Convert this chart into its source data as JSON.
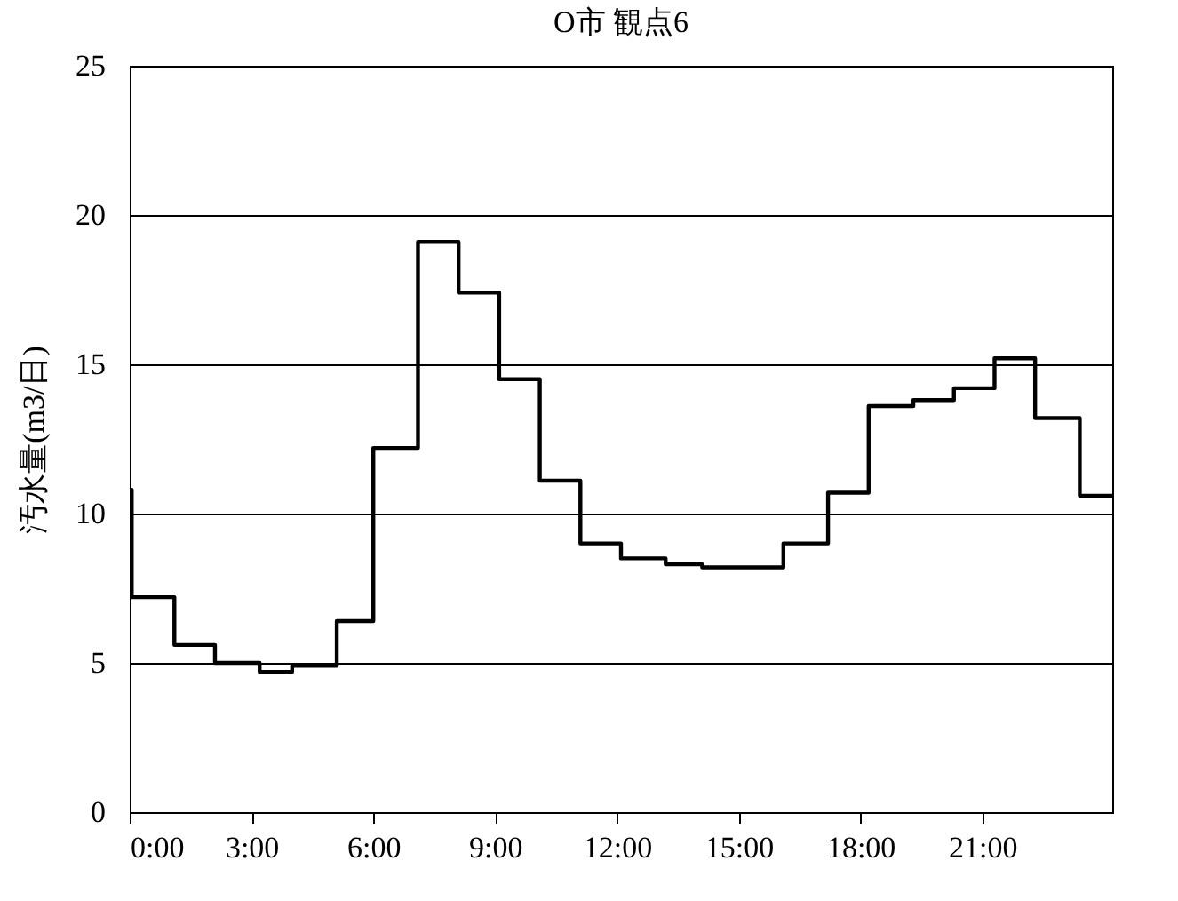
{
  "chart_data": {
    "type": "step",
    "title": "O市 観点6",
    "ylabel": "汚水量(m3/日)",
    "x": [
      0,
      0.05,
      1.1,
      2.1,
      3.2,
      4.0,
      5.1,
      6.0,
      7.1,
      8.1,
      9.1,
      10.1,
      11.1,
      12.1,
      13.2,
      14.1,
      16.1,
      17.2,
      18.2,
      19.3,
      20.3,
      21.3,
      22.3,
      23.4,
      24.2
    ],
    "series": [
      {
        "color": "#000000",
        "values": [
          10.8,
          7.2,
          5.6,
          5.0,
          4.7,
          4.9,
          6.4,
          12.2,
          19.1,
          17.4,
          14.5,
          11.1,
          9.0,
          8.5,
          8.3,
          8.2,
          9.0,
          10.7,
          13.6,
          13.8,
          14.2,
          15.2,
          13.2,
          10.6,
          10.6
        ]
      }
    ],
    "xlim": [
      0,
      24.2
    ],
    "xticks": [
      {
        "value": 0,
        "label": "0:00"
      },
      {
        "value": 3,
        "label": "3:00"
      },
      {
        "value": 6,
        "label": "6:00"
      },
      {
        "value": 9,
        "label": "9:00"
      },
      {
        "value": 12,
        "label": "12:00"
      },
      {
        "value": 15,
        "label": "15:00"
      },
      {
        "value": 18,
        "label": "18:00"
      },
      {
        "value": 21,
        "label": "21:00"
      }
    ],
    "ylim": [
      0,
      25
    ],
    "yticks": [
      0,
      5,
      10,
      15,
      20,
      25
    ],
    "grid": "y",
    "legend": false,
    "marker": "none",
    "line_style": "solid"
  }
}
